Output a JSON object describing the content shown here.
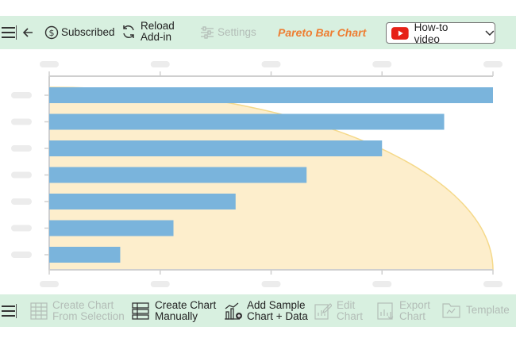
{
  "top_toolbar": {
    "subscribed_label": "Subscribed",
    "reload_line1": "Reload",
    "reload_line2": "Add-in",
    "settings_label": "Settings",
    "chart_title": "Pareto Bar Chart",
    "howto_label": "How-to video"
  },
  "bottom_toolbar": {
    "create_from_selection_line1": "Create Chart",
    "create_from_selection_line2": "From Selection",
    "create_manually_line1": "Create Chart",
    "create_manually_line2": "Manually",
    "add_sample_line1": "Add Sample",
    "add_sample_line2": "Chart + Data",
    "edit_line1": "Edit",
    "edit_line2": "Chart",
    "export_line1": "Export",
    "export_line2": "Chart",
    "template_label": "Template"
  },
  "colors": {
    "toolbar_bg": "#d8f0e0",
    "bar": "#7ab4dc",
    "area_fill": "#fdeecc",
    "area_line": "#f5d98a",
    "accent_orange": "#ee7d31",
    "youtube_red": "#e62117"
  },
  "chart_data": {
    "type": "bar",
    "orientation": "horizontal",
    "categories": [
      "",
      "",
      "",
      "",
      "",
      "",
      ""
    ],
    "values": [
      100,
      89,
      75,
      58,
      42,
      28,
      16
    ],
    "cumulative_curve": true,
    "xlim": [
      0,
      100
    ],
    "grid": false,
    "legend": "none"
  }
}
